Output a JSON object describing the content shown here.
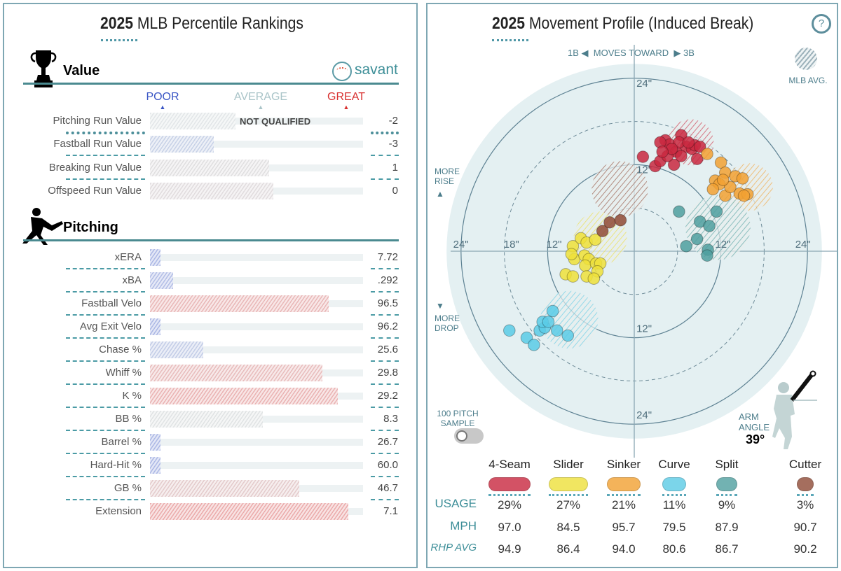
{
  "percentile": {
    "title_year": "2025",
    "title_text": "MLB Percentile Rankings",
    "brand": "savant",
    "scale": {
      "poor": "POOR",
      "average": "AVERAGE",
      "great": "GREAT"
    },
    "colors": {
      "poor": "#3a56c5",
      "average": "#b7c9ce",
      "great": "#d8302f"
    },
    "value_section": {
      "title": "Value",
      "rows": [
        {
          "label": "Pitching Run Value",
          "value": "-2",
          "percentile": 40,
          "qualified": false,
          "note": "NOT QUALIFIED"
        },
        {
          "label": "Fastball Run Value",
          "value": "-3",
          "percentile": 30
        },
        {
          "label": "Breaking Run Value",
          "value": "1",
          "percentile": 56
        },
        {
          "label": "Offspeed Run Value",
          "value": "0",
          "percentile": 58
        }
      ]
    },
    "pitching_section": {
      "title": "Pitching",
      "rows": [
        {
          "label": "xERA",
          "value": "7.72",
          "percentile": 5
        },
        {
          "label": "xBA",
          "value": ".292",
          "percentile": 11
        },
        {
          "label": "Fastball Velo",
          "value": "96.5",
          "percentile": 84
        },
        {
          "label": "Avg Exit Velo",
          "value": "96.2",
          "percentile": 5
        },
        {
          "label": "Chase %",
          "value": "25.6",
          "percentile": 25
        },
        {
          "label": "Whiff %",
          "value": "29.8",
          "percentile": 81
        },
        {
          "label": "K %",
          "value": "29.2",
          "percentile": 88
        },
        {
          "label": "BB %",
          "value": "8.3",
          "percentile": 53
        },
        {
          "label": "Barrel %",
          "value": "26.7",
          "percentile": 5
        },
        {
          "label": "Hard-Hit %",
          "value": "60.0",
          "percentile": 5
        },
        {
          "label": "GB %",
          "value": "46.7",
          "percentile": 70
        },
        {
          "label": "Extension",
          "value": "7.1",
          "percentile": 93
        }
      ]
    }
  },
  "movement": {
    "title_year": "2025",
    "title_text": "Movement Profile (Induced Break)",
    "help_label": "?",
    "direction": {
      "left": "1B",
      "middle": "MOVES TOWARD",
      "right": "3B"
    },
    "more_rise": "MORE RISE",
    "more_drop": "MORE DROP",
    "mlb_avg_label": "MLB AVG.",
    "sample_toggle": {
      "label": "100 PITCH SAMPLE",
      "on": false
    },
    "arm_angle": {
      "label": "ARM ANGLE",
      "value": "39°",
      "degrees": 39
    },
    "row_labels": {
      "usage": "USAGE",
      "mph": "MPH",
      "rhp_avg": "RHP AVG"
    },
    "chart_data": {
      "type": "scatter",
      "units": "inches",
      "rings": [
        6,
        12,
        18,
        24
      ],
      "ring_labels": {
        "left24": "24\"",
        "left18": "18\"",
        "left12": "12\"",
        "right12": "12\"",
        "right24": "24\"",
        "top24": "24\"",
        "top12": "12\"",
        "bottom12": "12\"",
        "bottom24": "24\""
      },
      "series": [
        {
          "name": "4-Seam",
          "color": "#c9283f",
          "usage": "29%",
          "mph": "97.0",
          "rhp_avg": "94.9",
          "mlb_avg": [
            7.8,
            15.1,
            3.2
          ],
          "points": [
            [
              1.2,
              13.1
            ],
            [
              2.9,
              11.8
            ],
            [
              3.6,
              12.5
            ],
            [
              4.3,
              15.4
            ],
            [
              4.9,
              14.8
            ],
            [
              5.8,
              13.8
            ],
            [
              6.5,
              16.1
            ],
            [
              7.2,
              14.5
            ],
            [
              8.0,
              14.2
            ],
            [
              8.4,
              14.7
            ],
            [
              8.7,
              12.8
            ],
            [
              5.5,
              12.0
            ],
            [
              4.6,
              13.2
            ],
            [
              3.6,
              15.1
            ],
            [
              6.2,
              15.1
            ],
            [
              7.5,
              15.1
            ],
            [
              9.1,
              14.5
            ],
            [
              5.2,
              14.2
            ],
            [
              6.5,
              13.2
            ],
            [
              3.9,
              13.8
            ]
          ]
        },
        {
          "name": "Slider",
          "color": "#eee03a",
          "usage": "27%",
          "mph": "84.5",
          "rhp_avg": "86.4",
          "mlb_avg": [
            -4.7,
            1.8,
            3.7
          ],
          "points": [
            [
              -8.5,
              0.7
            ],
            [
              -7.4,
              1.8
            ],
            [
              -6.6,
              1.2
            ],
            [
              -5.4,
              1.6
            ],
            [
              -8.3,
              -1.1
            ],
            [
              -6.9,
              -0.6
            ],
            [
              -6.3,
              -1.1
            ],
            [
              -6.8,
              -2.0
            ],
            [
              -5.3,
              -1.7
            ],
            [
              -4.7,
              -1.7
            ],
            [
              -5.1,
              -2.8
            ],
            [
              -9.5,
              -3.2
            ],
            [
              -8.5,
              -3.5
            ],
            [
              -6.6,
              -3.5
            ],
            [
              -5.6,
              -3.8
            ],
            [
              -8.7,
              -0.4
            ]
          ]
        },
        {
          "name": "Sinker",
          "color": "#f2a132",
          "usage": "21%",
          "mph": "95.7",
          "rhp_avg": "94.0",
          "mlb_avg": [
            15.9,
            8.9,
            3.3
          ],
          "points": [
            [
              10.1,
              13.5
            ],
            [
              12.0,
              12.3
            ],
            [
              12.6,
              10.9
            ],
            [
              11.2,
              9.8
            ],
            [
              11.8,
              9.3
            ],
            [
              14.0,
              10.4
            ],
            [
              15.0,
              10.1
            ],
            [
              10.9,
              8.6
            ],
            [
              12.6,
              7.7
            ],
            [
              14.6,
              8.0
            ],
            [
              15.7,
              7.9
            ],
            [
              13.3,
              8.9
            ],
            [
              12.3,
              9.9
            ],
            [
              15.2,
              7.7
            ]
          ]
        },
        {
          "name": "Curve",
          "color": "#5bcbe6",
          "usage": "11%",
          "mph": "79.5",
          "rhp_avg": "80.6",
          "mlb_avg": [
            -9.0,
            -9.5,
            4.0
          ],
          "points": [
            [
              -17.3,
              -11.0
            ],
            [
              -14.9,
              -12.0
            ],
            [
              -13.9,
              -13.0
            ],
            [
              -13.1,
              -11.0
            ],
            [
              -12.4,
              -10.6
            ],
            [
              -12.7,
              -9.8
            ],
            [
              -11.3,
              -8.3
            ],
            [
              -10.7,
              -11.0
            ],
            [
              -9.2,
              -11.7
            ],
            [
              -11.9,
              -9.8
            ]
          ]
        },
        {
          "name": "Split",
          "color": "#4f9f9f",
          "usage": "9%",
          "mph": "87.9",
          "rhp_avg": "86.7",
          "mlb_avg": [
            11.6,
            3.3,
            4.5
          ],
          "points": [
            [
              6.2,
              5.5
            ],
            [
              11.4,
              5.5
            ],
            [
              9.1,
              4.1
            ],
            [
              10.4,
              3.5
            ],
            [
              8.7,
              1.7
            ],
            [
              7.2,
              0.7
            ],
            [
              10.2,
              0.2
            ],
            [
              10.1,
              -0.6
            ]
          ]
        },
        {
          "name": "Cutter",
          "color": "#8f4a36",
          "usage": "3%",
          "mph": "90.7",
          "rhp_avg": "90.2",
          "mlb_avg": [
            -2.0,
            8.6,
            3.9
          ],
          "points": [
            [
              -4.4,
              2.8
            ],
            [
              -3.4,
              4.0
            ],
            [
              -1.9,
              4.3
            ]
          ]
        }
      ]
    }
  }
}
